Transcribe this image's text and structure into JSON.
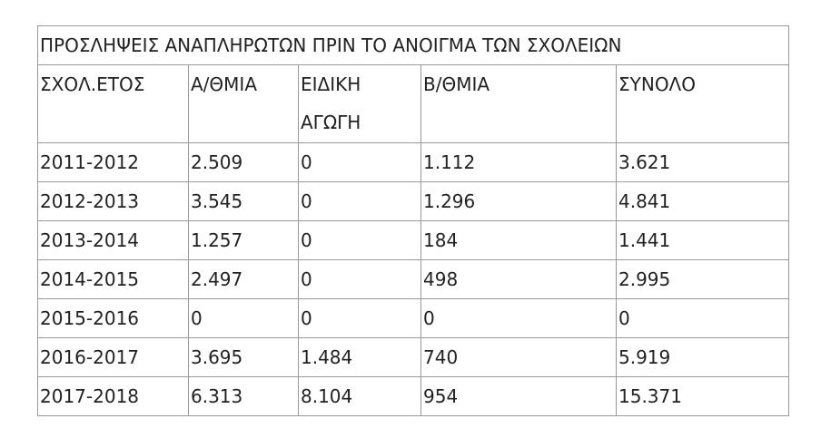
{
  "header": {
    "title": "ΠΡΟΣΛΗΨΕΙΣ ΑΝΑΠΛΗΡΩΤΩΝ ΠΡΙΝ ΤΟ ΑΝΟΙΓΜΑ ΤΩΝ ΣΧΟΛΕΙΩΝ"
  },
  "table": {
    "columns": [
      "ΣΧΟΛ.ΕΤΟΣ",
      "Α/ΘΜΙΑ",
      "ΕΙΔΙΚΗ ΑΓΩΓΗ",
      "Β/ΘΜΙΑ",
      "ΣΥΝΟΛΟ"
    ],
    "rows": [
      [
        "2011-2012",
        "2.509",
        "0",
        "1.112",
        "3.621"
      ],
      [
        "2012-2013",
        "3.545",
        "0",
        "1.296",
        "4.841"
      ],
      [
        "2013-2014",
        "1.257",
        "0",
        "184",
        "1.441"
      ],
      [
        "2014-2015",
        "2.497",
        "0",
        "498",
        "2.995"
      ],
      [
        "2015-2016",
        "0",
        "0",
        "0",
        "0"
      ],
      [
        "2016-2017",
        "3.695",
        "1.484",
        "740",
        "5.919"
      ],
      [
        "2017-2018",
        "6.313",
        "8.104",
        "954",
        "15.371"
      ]
    ]
  }
}
